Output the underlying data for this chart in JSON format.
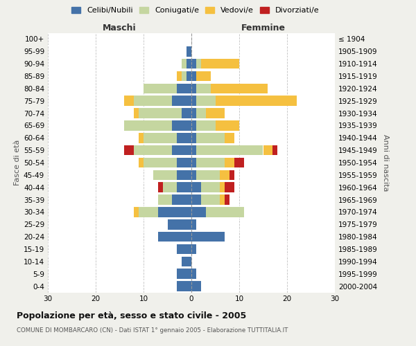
{
  "age_groups": [
    "0-4",
    "5-9",
    "10-14",
    "15-19",
    "20-24",
    "25-29",
    "30-34",
    "35-39",
    "40-44",
    "45-49",
    "50-54",
    "55-59",
    "60-64",
    "65-69",
    "70-74",
    "75-79",
    "80-84",
    "85-89",
    "90-94",
    "95-99",
    "100+"
  ],
  "birth_years": [
    "2000-2004",
    "1995-1999",
    "1990-1994",
    "1985-1989",
    "1980-1984",
    "1975-1979",
    "1970-1974",
    "1965-1969",
    "1960-1964",
    "1955-1959",
    "1950-1954",
    "1945-1949",
    "1940-1944",
    "1935-1939",
    "1930-1934",
    "1925-1929",
    "1920-1924",
    "1915-1919",
    "1910-1914",
    "1905-1909",
    "≤ 1904"
  ],
  "male": {
    "celibi": [
      3,
      3,
      2,
      3,
      7,
      5,
      7,
      4,
      3,
      3,
      3,
      4,
      3,
      4,
      2,
      4,
      3,
      1,
      1,
      1,
      0
    ],
    "coniugati": [
      0,
      0,
      0,
      0,
      0,
      0,
      4,
      3,
      3,
      5,
      7,
      8,
      7,
      10,
      9,
      8,
      7,
      1,
      1,
      0,
      0
    ],
    "vedovi": [
      0,
      0,
      0,
      0,
      0,
      0,
      1,
      0,
      0,
      0,
      1,
      0,
      1,
      0,
      1,
      2,
      0,
      1,
      0,
      0,
      0
    ],
    "divorziati": [
      0,
      0,
      0,
      0,
      0,
      0,
      0,
      0,
      1,
      0,
      0,
      2,
      0,
      0,
      0,
      0,
      0,
      0,
      0,
      0,
      0
    ]
  },
  "female": {
    "nubili": [
      2,
      1,
      0,
      1,
      7,
      1,
      3,
      2,
      2,
      1,
      1,
      1,
      1,
      1,
      1,
      1,
      1,
      1,
      1,
      0,
      0
    ],
    "coniugate": [
      0,
      0,
      0,
      0,
      0,
      0,
      8,
      4,
      4,
      5,
      6,
      14,
      6,
      4,
      2,
      4,
      3,
      0,
      1,
      0,
      0
    ],
    "vedove": [
      0,
      0,
      0,
      0,
      0,
      0,
      0,
      1,
      1,
      2,
      2,
      2,
      2,
      5,
      4,
      17,
      12,
      3,
      8,
      0,
      0
    ],
    "divorziate": [
      0,
      0,
      0,
      0,
      0,
      0,
      0,
      1,
      2,
      1,
      2,
      1,
      0,
      0,
      0,
      0,
      0,
      0,
      0,
      0,
      0
    ]
  },
  "colors": {
    "celibi": "#4472a8",
    "coniugati": "#c5d6a0",
    "vedovi": "#f5c040",
    "divorziati": "#c02020"
  },
  "xlim": 30,
  "title": "Popolazione per età, sesso e stato civile - 2005",
  "subtitle": "COMUNE DI MOMBARCARO (CN) - Dati ISTAT 1° gennaio 2005 - Elaborazione TUTTITALIA.IT",
  "xlabel_left": "Maschi",
  "xlabel_right": "Femmine",
  "ylabel_left": "Fasce di età",
  "ylabel_right": "Anni di nascita",
  "bg_color": "#f0f0eb",
  "plot_bg": "#ffffff"
}
